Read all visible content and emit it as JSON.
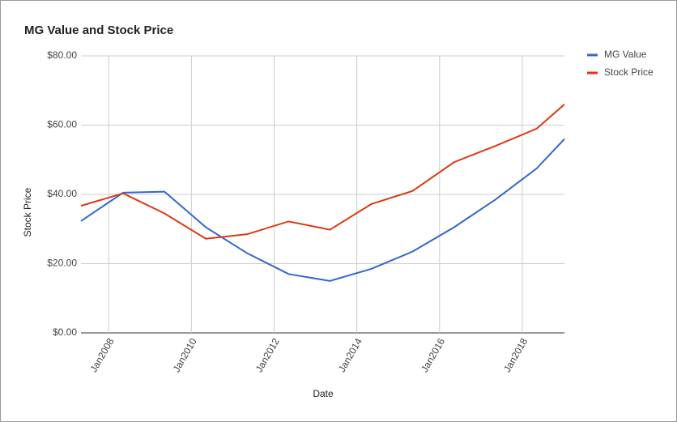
{
  "chart_data": {
    "type": "line",
    "title": "MG Value and Stock Price",
    "x_label": "Date",
    "y_label": "Stock Price",
    "x": [
      2007.33,
      2008.35,
      2009.35,
      2010.35,
      2011.35,
      2012.35,
      2013.35,
      2014.35,
      2015.35,
      2016.35,
      2017.35,
      2018.35,
      2019.02
    ],
    "series": [
      {
        "name": "MG Value",
        "color": "#3366cc",
        "values": [
          32.3,
          40.5,
          40.8,
          30.5,
          23,
          17,
          15,
          18.5,
          23.5,
          30.5,
          38.5,
          47.5,
          56
        ]
      },
      {
        "name": "Stock Price",
        "color": "#dc3912",
        "values": [
          36.7,
          40.3,
          34.5,
          27.2,
          28.5,
          32.2,
          29.8,
          37.2,
          41,
          49.3,
          54,
          59,
          66
        ]
      }
    ],
    "xlim": [
      2007.33,
      2019.02
    ],
    "xticks": [
      {
        "value": 2008,
        "label": "Jan2008"
      },
      {
        "value": 2010,
        "label": "Jan2010"
      },
      {
        "value": 2012,
        "label": "Jan2012"
      },
      {
        "value": 2014,
        "label": "Jan2014"
      },
      {
        "value": 2016,
        "label": "Jan2016"
      },
      {
        "value": 2018,
        "label": "Jan2018"
      }
    ],
    "ylim": [
      0,
      80
    ],
    "yticks": [
      {
        "value": 0,
        "label": "$0.00"
      },
      {
        "value": 20,
        "label": "$20.00"
      },
      {
        "value": 40,
        "label": "$40.00"
      },
      {
        "value": 60,
        "label": "$60.00"
      },
      {
        "value": 80,
        "label": "$80.00"
      }
    ],
    "grid": true,
    "legend": "right"
  }
}
